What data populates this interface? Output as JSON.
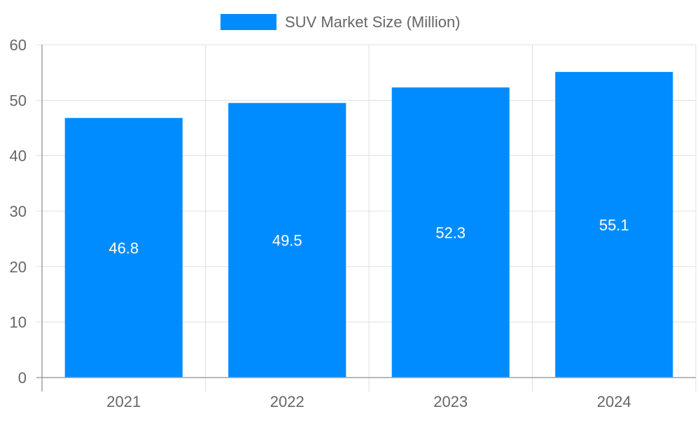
{
  "chart_data": {
    "type": "bar",
    "categories": [
      "2021",
      "2022",
      "2023",
      "2024"
    ],
    "series": [
      {
        "name": "SUV Market Size (Million)",
        "values": [
          46.8,
          49.5,
          52.3,
          55.1
        ]
      }
    ],
    "data_labels": [
      "46.8",
      "49.5",
      "52.3",
      "55.1"
    ],
    "ylim": [
      0,
      60
    ],
    "yticks": [
      "0",
      "10",
      "20",
      "30",
      "40",
      "50",
      "60"
    ],
    "grid": true,
    "legend_position": "top",
    "colors": {
      "bar": "#008cff",
      "grid": "#e0e0e0",
      "axis": "#a0a0a0",
      "text": "#666666",
      "label": "#ffffff"
    }
  }
}
